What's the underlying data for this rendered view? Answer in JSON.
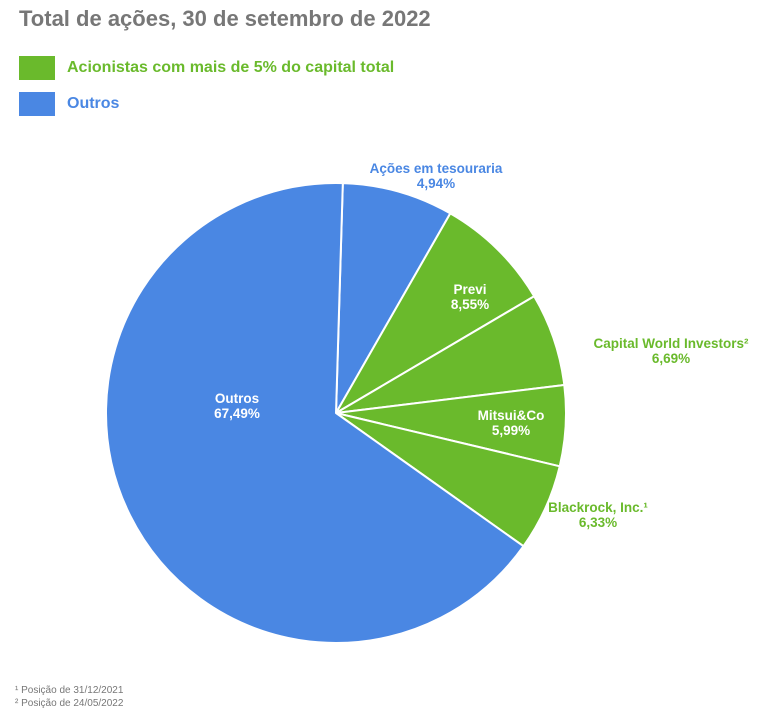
{
  "colors": {
    "green": "#6aba2c",
    "blue": "#4a87e3",
    "title": "#777777",
    "separator": "#ffffff"
  },
  "chart_data": {
    "type": "pie",
    "title": "Total de ações, 30 de setembro de 2022",
    "legend": [
      {
        "label": "Acionistas com mais de 5% do capital total",
        "color": "#6aba2c"
      },
      {
        "label": "Outros",
        "color": "#4a87e3"
      }
    ],
    "slices": [
      {
        "label": "Ações em tesouraria",
        "value": 4.94,
        "display": "4,94%",
        "group": "Outros",
        "color": "#4a87e3"
      },
      {
        "label": "Previ",
        "value": 8.55,
        "display": "8,55%",
        "group": "Acionistas com mais de 5% do capital total",
        "color": "#6aba2c"
      },
      {
        "label": "Capital World Investors²",
        "value": 6.69,
        "display": "6,69%",
        "group": "Acionistas com mais de 5% do capital total",
        "color": "#6aba2c"
      },
      {
        "label": "Mitsui&Co",
        "value": 5.99,
        "display": "5,99%",
        "group": "Acionistas com mais de 5% do capital total",
        "color": "#6aba2c"
      },
      {
        "label": "Blackrock, Inc.¹",
        "value": 6.33,
        "display": "6,33%",
        "group": "Acionistas com mais de 5% do capital total",
        "color": "#6aba2c"
      },
      {
        "label": "Outros",
        "value": 67.49,
        "display": "67,49%",
        "group": "Outros",
        "color": "#4a87e3"
      }
    ],
    "footnotes": [
      "¹ Posição de 31/12/2021",
      "² Posição de 24/05/2022"
    ]
  },
  "labels": {
    "treasury": {
      "name": "Ações em tesouraria",
      "pct": "4,94%"
    },
    "previ": {
      "name": "Previ",
      "pct": "8,55%"
    },
    "capital": {
      "name": "Capital World Investors²",
      "pct": "6,69%"
    },
    "mitsui": {
      "name": "Mitsui&Co",
      "pct": "5,99%"
    },
    "blackrock": {
      "name": "Blackrock, Inc.¹",
      "pct": "6,33%"
    },
    "outros": {
      "name": "Outros",
      "pct": "67,49%"
    }
  },
  "footnotes": {
    "one": "¹ Posição de 31/12/2021",
    "two": "² Posição de 24/05/2022"
  }
}
